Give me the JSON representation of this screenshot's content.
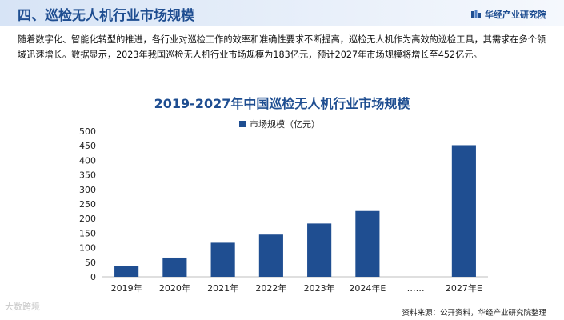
{
  "header": {
    "title": "四、巡检无人机行业市场规模",
    "brand": "华经产业研究院"
  },
  "intro": "随着数字化、智能化转型的推进，各行业对巡检工作的效率和准确性要求不断提高，巡检无人机作为高效的巡检工具，其需求在多个领域迅速增长。数据显示，2023年我国巡检无人机行业市场规模为183亿元，预计2027年市场规模将增长至452亿元。",
  "colors": {
    "bar": "#1f4e91",
    "title": "#1f4e91"
  },
  "chart_data": {
    "type": "bar",
    "title": "2019-2027年中国巡检无人机行业市场规模",
    "xlabel": "",
    "ylabel": "",
    "categories": [
      "2019年",
      "2020年",
      "2021年",
      "2022年",
      "2023年",
      "2024年E",
      "……",
      "2027年E"
    ],
    "series": [
      {
        "name": "市场规模（亿元）",
        "values": [
          38,
          66,
          117,
          145,
          183,
          226,
          null,
          452
        ]
      }
    ],
    "ylim": [
      0,
      500
    ],
    "yticks": [
      0,
      50,
      100,
      150,
      200,
      250,
      300,
      350,
      400,
      450,
      500
    ],
    "grid": false,
    "legend": "top-center"
  },
  "footer": {
    "source": "资料来源：公开资料，华经产业研究院整理",
    "watermark": "大数跨境"
  }
}
